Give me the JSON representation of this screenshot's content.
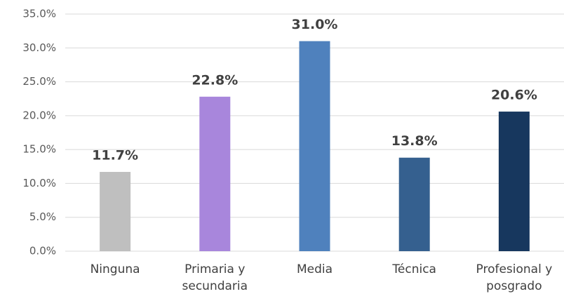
{
  "chart_data": {
    "type": "bar",
    "categories": [
      "Ninguna",
      "Primaria y secundaria",
      "Media",
      "Técnica",
      "Profesional y posgrado"
    ],
    "values": [
      11.7,
      22.8,
      31.0,
      13.8,
      20.6
    ],
    "value_labels": [
      "11.7%",
      "22.8%",
      "31.0%",
      "13.8%",
      "20.6%"
    ],
    "colors": [
      "#bfbfbf",
      "#a886dc",
      "#4f81bd",
      "#35608f",
      "#17375e"
    ],
    "ylim": [
      0,
      35
    ],
    "yticks": [
      {
        "value": 0,
        "label": "0.0%"
      },
      {
        "value": 5,
        "label": "5.0%"
      },
      {
        "value": 10,
        "label": "10.0%"
      },
      {
        "value": 15,
        "label": "15.0%"
      },
      {
        "value": 20,
        "label": "20.0%"
      },
      {
        "value": 25,
        "label": "25.0%"
      },
      {
        "value": 30,
        "label": "30.0%"
      },
      {
        "value": 35,
        "label": "35.0%"
      }
    ],
    "grid": true
  }
}
